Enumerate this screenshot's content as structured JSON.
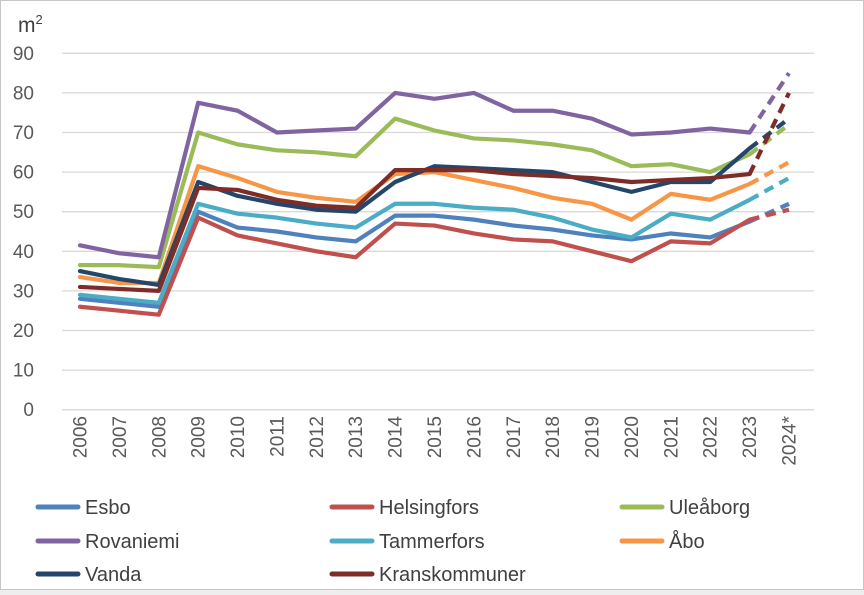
{
  "title": {
    "unit": "m",
    "superscript": "2"
  },
  "chart_data": {
    "type": "line",
    "x": [
      "2006",
      "2007",
      "2008",
      "2009",
      "2010",
      "2011",
      "2012",
      "2013",
      "2014",
      "2015",
      "2016",
      "2017",
      "2018",
      "2019",
      "2020",
      "2021",
      "2022",
      "2023",
      "2024*"
    ],
    "ylabel": "m2",
    "ylim": [
      0,
      90
    ],
    "ytick_step": 10,
    "yticks": [
      0,
      10,
      20,
      30,
      40,
      50,
      60,
      70,
      80,
      90
    ],
    "grid": true,
    "legend_position": "bottom",
    "dashed_segment": {
      "from": "2023",
      "to": "2024*",
      "style": "dashed"
    },
    "series": [
      {
        "name": "Esbo",
        "color": "#4F81BD",
        "values": [
          28,
          27,
          26,
          50,
          46,
          45,
          43.5,
          42.5,
          49,
          49,
          48,
          46.5,
          45.5,
          44,
          43,
          44.5,
          43.5,
          47.5,
          52
        ]
      },
      {
        "name": "Helsingfors",
        "color": "#C0504D",
        "values": [
          26,
          25,
          24,
          48.5,
          44,
          42,
          40,
          38.5,
          47,
          46.5,
          44.5,
          43,
          42.5,
          40,
          37.5,
          42.5,
          42,
          48,
          50.5
        ]
      },
      {
        "name": "Uleåborg",
        "color": "#9BBB59",
        "values": [
          36.5,
          36.5,
          36,
          70,
          67,
          65.5,
          65,
          64,
          73.5,
          70.5,
          68.5,
          68,
          67,
          65.5,
          61.5,
          62,
          60,
          64.5,
          72
        ]
      },
      {
        "name": "Rovaniemi",
        "color": "#8064A2",
        "values": [
          41.5,
          39.5,
          38.5,
          77.5,
          75.5,
          70,
          70.5,
          71,
          80,
          78.5,
          80,
          75.5,
          75.5,
          73.5,
          69.5,
          70,
          71,
          70,
          85
        ]
      },
      {
        "name": "Tammerfors",
        "color": "#4BACC6",
        "values": [
          29,
          28,
          27,
          52,
          49.5,
          48.5,
          47,
          46,
          52,
          52,
          51,
          50.5,
          48.5,
          45.5,
          43.5,
          49.5,
          48,
          53,
          58.5
        ]
      },
      {
        "name": "Åbo",
        "color": "#F79646",
        "values": [
          33.5,
          32,
          32,
          61.5,
          58.5,
          55,
          53.5,
          52.5,
          59.5,
          60,
          58,
          56,
          53.5,
          52,
          48,
          54.5,
          53,
          57,
          62.5
        ]
      },
      {
        "name": "Vanda",
        "color": "#24466B",
        "values": [
          35,
          33,
          31.5,
          57.5,
          54,
          52,
          50.5,
          50,
          57.5,
          61.5,
          61,
          60.5,
          60,
          57.5,
          55,
          57.5,
          57.5,
          66,
          73.5
        ]
      },
      {
        "name": "Kranskommuner",
        "color": "#7D2C27",
        "values": [
          31,
          30.5,
          30,
          56,
          55.5,
          53,
          51.5,
          51,
          60.5,
          60.5,
          60.5,
          59.5,
          59,
          58.5,
          57.5,
          58,
          58.5,
          59.5,
          80
        ]
      }
    ],
    "legend_rows": [
      [
        "Esbo",
        "Helsingfors",
        "Uleåborg"
      ],
      [
        "Rovaniemi",
        "Tammerfors",
        "Åbo"
      ],
      [
        "Vanda",
        "Kranskommuner"
      ]
    ]
  },
  "style_colors": {
    "grid": "#D9D9D9",
    "axis_text": "#595959",
    "legend_text": "#404040",
    "border": "#C6C6C6",
    "background": "#FFFFFF"
  }
}
